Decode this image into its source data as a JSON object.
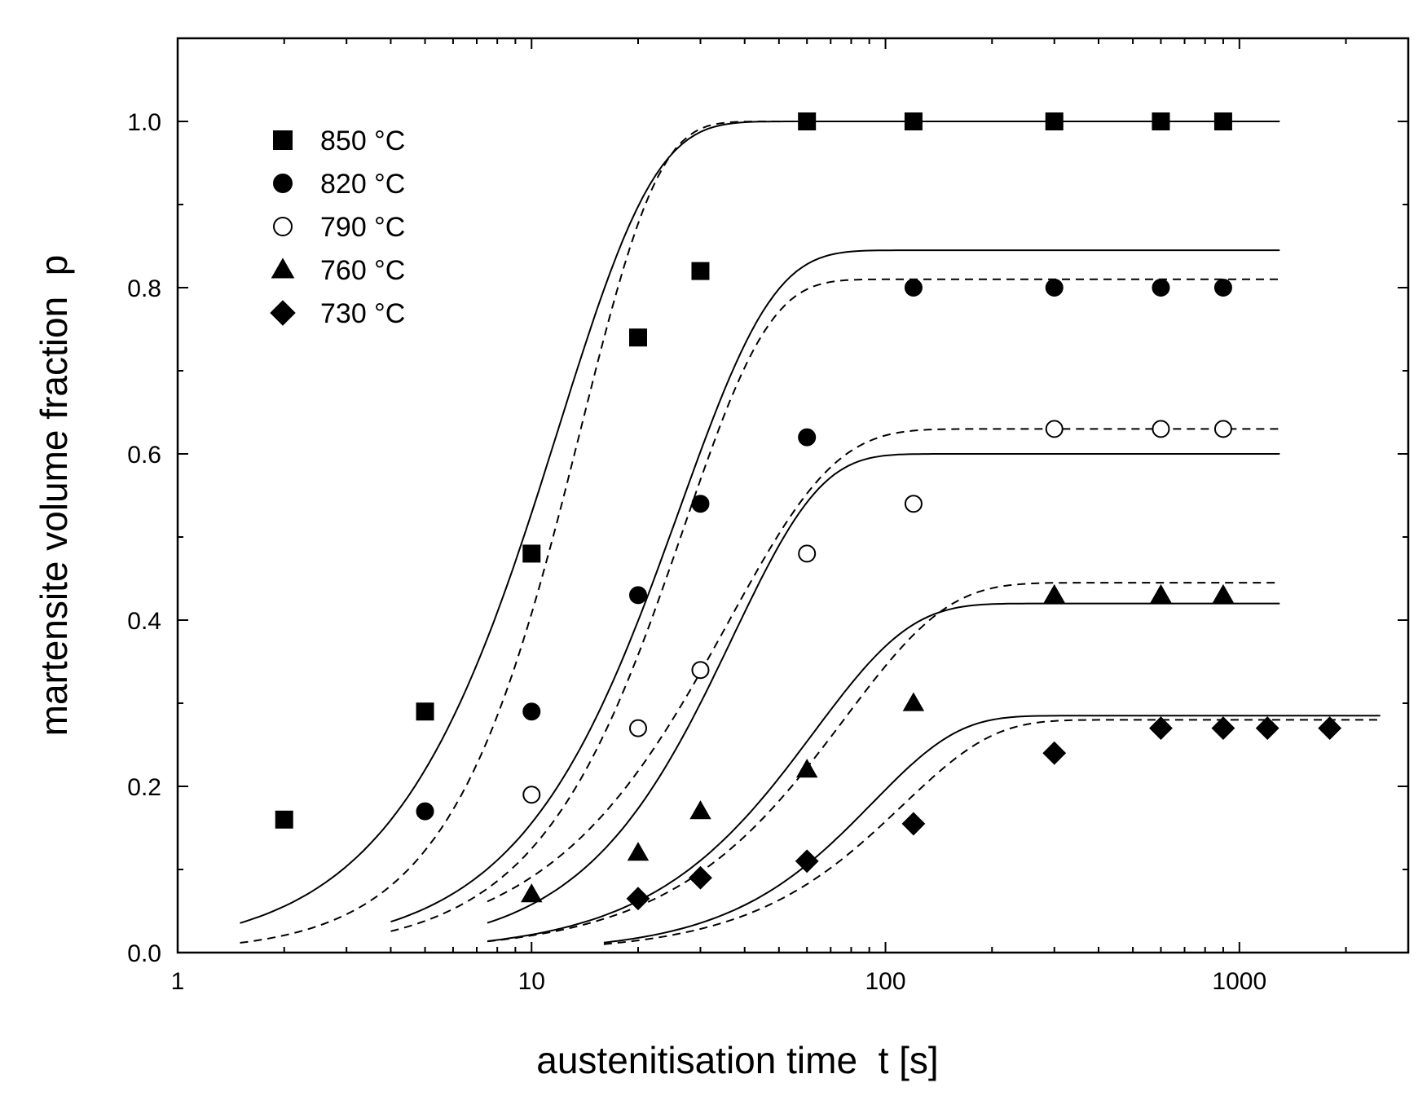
{
  "chart_data": {
    "type": "scatter",
    "xlabel": "austenitisation time  t [s]",
    "ylabel": "martensite volume fraction  p",
    "x_scale": "log",
    "xlim": [
      1,
      3000
    ],
    "ylim": [
      0,
      1.1
    ],
    "x_ticks": [
      1,
      10,
      100,
      1000
    ],
    "x_tick_labels": [
      "1",
      "10",
      "100",
      "1000"
    ],
    "y_ticks": [
      0.0,
      0.2,
      0.4,
      0.6,
      0.8,
      1.0
    ],
    "y_tick_labels": [
      "0.0",
      "0.2",
      "0.4",
      "0.6",
      "0.8",
      "1.0"
    ],
    "grid": false,
    "legend_position": "top-left",
    "series": [
      {
        "name": "850 °C",
        "marker": "square",
        "filled": true,
        "points": [
          [
            2,
            0.16
          ],
          [
            5,
            0.29
          ],
          [
            10,
            0.48
          ],
          [
            20,
            0.74
          ],
          [
            30,
            0.82
          ],
          [
            60,
            1.0
          ],
          [
            120,
            1.0
          ],
          [
            300,
            1.0
          ],
          [
            600,
            1.0
          ],
          [
            900,
            1.0
          ]
        ],
        "fit_solid": {
          "pmax": 1.0,
          "t50": 9.5,
          "n": 1.6,
          "tmin": 1.5,
          "tmax": 1300
        },
        "fit_dashed": {
          "pmax": 1.0,
          "t50": 11.5,
          "n": 2.0,
          "tmin": 1.5,
          "tmax": 1300
        }
      },
      {
        "name": "820 °C",
        "marker": "circle",
        "filled": true,
        "points": [
          [
            5,
            0.17
          ],
          [
            10,
            0.29
          ],
          [
            20,
            0.43
          ],
          [
            30,
            0.54
          ],
          [
            60,
            0.62
          ],
          [
            120,
            0.8
          ],
          [
            300,
            0.8
          ],
          [
            600,
            0.8
          ],
          [
            900,
            0.8
          ]
        ],
        "fit_solid": {
          "pmax": 0.845,
          "t50": 21,
          "n": 1.65,
          "tmin": 4,
          "tmax": 1300
        },
        "fit_dashed": {
          "pmax": 0.81,
          "t50": 22,
          "n": 1.8,
          "tmin": 4,
          "tmax": 1300
        }
      },
      {
        "name": "790 °C",
        "marker": "circle",
        "filled": false,
        "points": [
          [
            10,
            0.19
          ],
          [
            20,
            0.27
          ],
          [
            30,
            0.34
          ],
          [
            60,
            0.48
          ],
          [
            120,
            0.54
          ],
          [
            300,
            0.63
          ],
          [
            600,
            0.63
          ],
          [
            900,
            0.63
          ]
        ],
        "fit_solid": {
          "pmax": 0.6,
          "t50": 30,
          "n": 1.75,
          "tmin": 7.5,
          "tmax": 1300
        },
        "fit_dashed": {
          "pmax": 0.63,
          "t50": 28,
          "n": 1.45,
          "tmin": 7.5,
          "tmax": 1300
        }
      },
      {
        "name": "760 °C",
        "marker": "triangle",
        "filled": true,
        "points": [
          [
            10,
            0.07
          ],
          [
            20,
            0.12
          ],
          [
            30,
            0.17
          ],
          [
            60,
            0.22
          ],
          [
            120,
            0.3
          ],
          [
            300,
            0.43
          ],
          [
            600,
            0.43
          ],
          [
            900,
            0.43
          ]
        ],
        "fit_solid": {
          "pmax": 0.42,
          "t50": 50,
          "n": 1.6,
          "tmin": 7.5,
          "tmax": 1300
        },
        "fit_dashed": {
          "pmax": 0.445,
          "t50": 60,
          "n": 1.5,
          "tmin": 7.5,
          "tmax": 1300
        }
      },
      {
        "name": "730 °C",
        "marker": "diamond",
        "filled": true,
        "points": [
          [
            20,
            0.065
          ],
          [
            30,
            0.09
          ],
          [
            60,
            0.11
          ],
          [
            120,
            0.155
          ],
          [
            300,
            0.24
          ],
          [
            600,
            0.27
          ],
          [
            900,
            0.27
          ],
          [
            1200,
            0.27
          ],
          [
            1800,
            0.27
          ]
        ],
        "fit_solid": {
          "pmax": 0.285,
          "t50": 75,
          "n": 1.8,
          "tmin": 16,
          "tmax": 2500
        },
        "fit_dashed": {
          "pmax": 0.28,
          "t50": 90,
          "n": 1.7,
          "tmin": 16,
          "tmax": 2500
        }
      }
    ]
  }
}
